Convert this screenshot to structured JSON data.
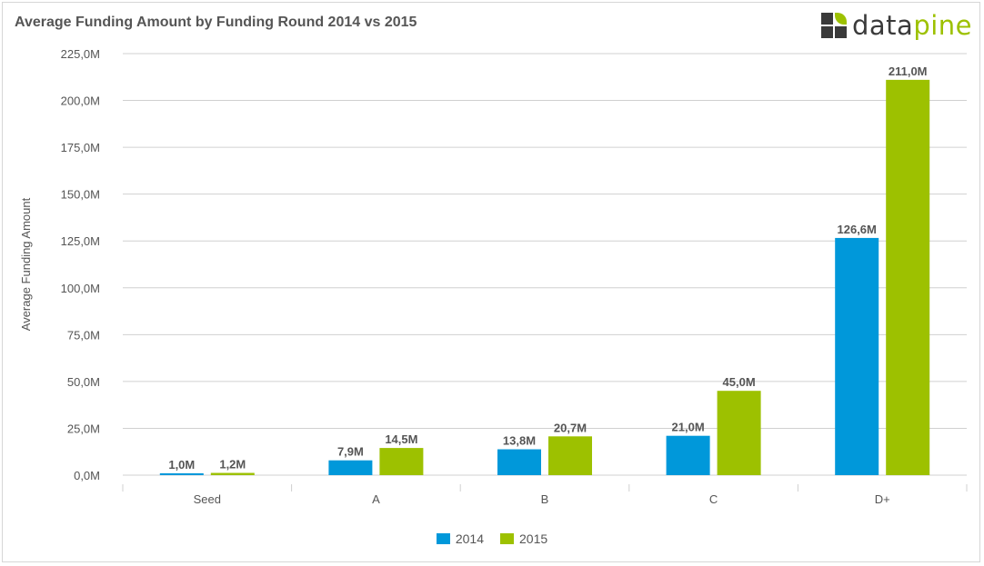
{
  "header": {
    "title": "Average Funding Amount by Funding Round 2014 vs 2015",
    "logo_text_dark": "data",
    "logo_text_green": "pine"
  },
  "colors": {
    "series_2014": "#0098da",
    "series_2015": "#9dc100",
    "grid": "#d0d0d0",
    "text": "#555555"
  },
  "chart_data": {
    "type": "bar",
    "title": "Average Funding Amount by Funding Round 2014 vs 2015",
    "ylabel": "Average Funding Amount",
    "xlabel": "",
    "categories": [
      "Seed",
      "A",
      "B",
      "C",
      "D+"
    ],
    "series": [
      {
        "name": "2014",
        "values": [
          1.0,
          7.9,
          13.8,
          21.0,
          126.6
        ],
        "labels": [
          "1,0M",
          "7,9M",
          "13,8M",
          "21,0M",
          "126,6M"
        ]
      },
      {
        "name": "2015",
        "values": [
          1.2,
          14.5,
          20.7,
          45.0,
          211.0
        ],
        "labels": [
          "1,2M",
          "14,5M",
          "20,7M",
          "45,0M",
          "211,0M"
        ]
      }
    ],
    "ylim": [
      0,
      225
    ],
    "yticks": [
      0,
      25,
      50,
      75,
      100,
      125,
      150,
      175,
      200,
      225
    ],
    "ytick_labels": [
      "0,0M",
      "25,0M",
      "50,0M",
      "75,0M",
      "100,0M",
      "125,0M",
      "150,0M",
      "175,0M",
      "200,0M",
      "225,0M"
    ],
    "grid": true,
    "legend_position": "bottom-center"
  }
}
